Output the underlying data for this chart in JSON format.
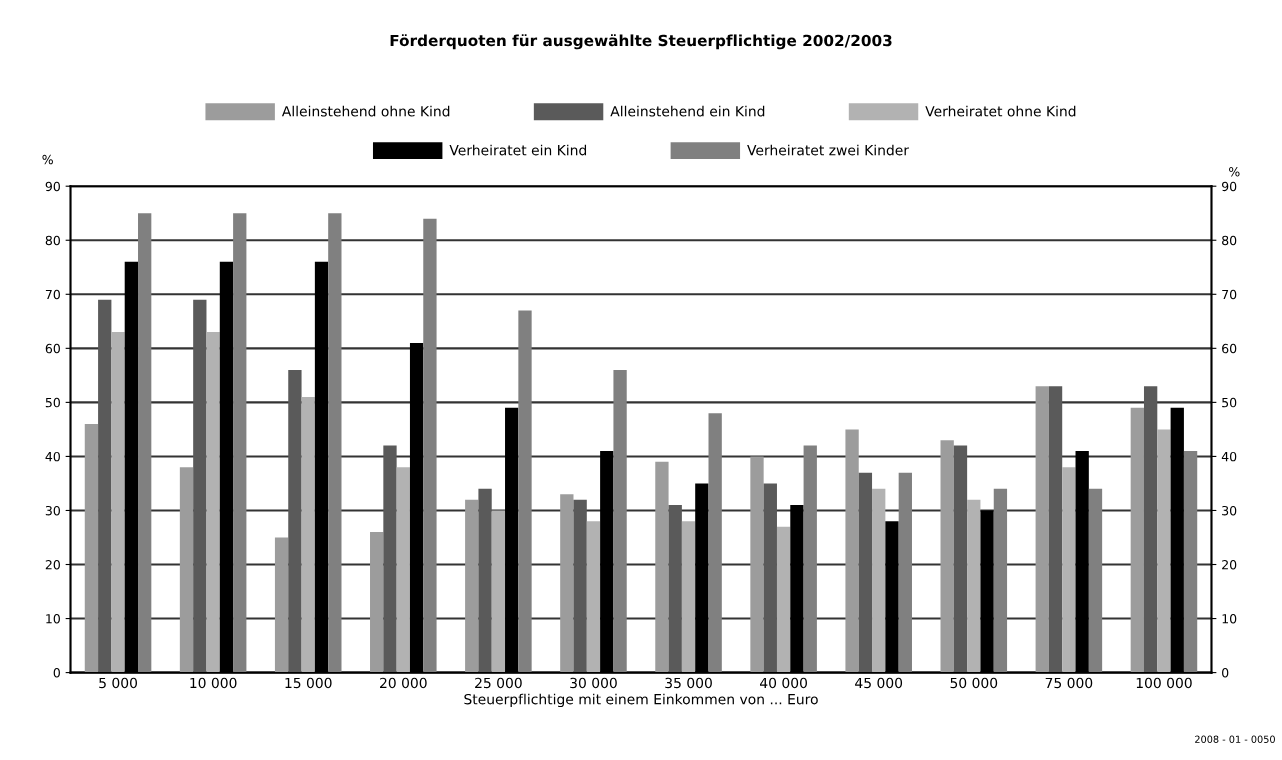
{
  "chart_data": {
    "type": "bar",
    "title": "Förderquoten für ausgewählte Steuerpflichtige 2002/2003",
    "categories": [
      "5 000",
      "10 000",
      "15 000",
      "20 000",
      "25 000",
      "30 000",
      "35 000",
      "40 000",
      "45 000",
      "50 000",
      "75 000",
      "100 000"
    ],
    "series": [
      {
        "name": "Alleinstehend ohne Kind",
        "color": "#9c9c9c",
        "values": [
          46,
          38,
          25,
          26,
          32,
          33,
          39,
          40,
          45,
          43,
          53,
          49
        ]
      },
      {
        "name": "Alleinstehend ein Kind",
        "color": "#5a5a5a",
        "values": [
          69,
          69,
          56,
          42,
          34,
          32,
          31,
          35,
          37,
          42,
          53,
          53
        ]
      },
      {
        "name": "Verheiratet ohne Kind",
        "color": "#b2b2b2",
        "values": [
          63,
          63,
          51,
          38,
          30,
          28,
          28,
          27,
          34,
          32,
          38,
          45
        ]
      },
      {
        "name": "Verheiratet ein Kind",
        "color": "#000000",
        "values": [
          76,
          76,
          76,
          61,
          49,
          41,
          35,
          31,
          28,
          30,
          41,
          49
        ]
      },
      {
        "name": "Verheiratet zwei Kinder",
        "color": "#808080",
        "values": [
          85,
          85,
          85,
          84,
          67,
          56,
          48,
          42,
          37,
          34,
          34,
          41
        ]
      }
    ],
    "xlabel": "Steuerpflichtige mit einem Einkommen von ... Euro",
    "ylabel": "%",
    "y2label": "%",
    "ylim": [
      0,
      90
    ],
    "yticks": [
      0,
      10,
      20,
      30,
      40,
      50,
      60,
      70,
      80,
      90
    ],
    "y2lim": [
      0,
      90
    ],
    "y2ticks": [
      0,
      10,
      20,
      30,
      40,
      50,
      60,
      70,
      80,
      90
    ],
    "grid": "y",
    "legend": "top",
    "annotations": [
      "2008 - 01 - 0050"
    ]
  }
}
